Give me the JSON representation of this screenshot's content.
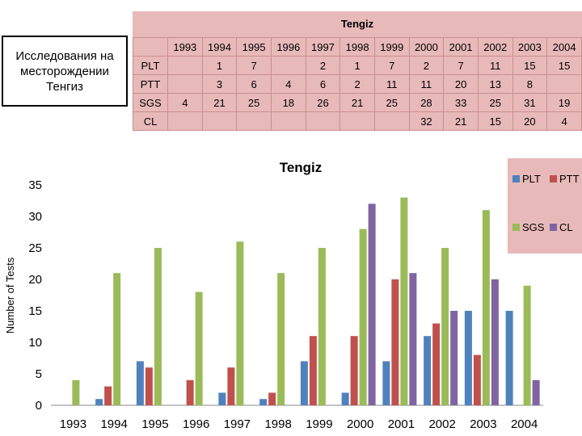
{
  "caption": {
    "lines": [
      "Исследования на",
      "месторождении",
      "Тенгиз"
    ]
  },
  "table": {
    "title": "Tengiz",
    "years": [
      "1993",
      "1994",
      "1995",
      "1996",
      "1997",
      "1998",
      "1999",
      "2000",
      "2001",
      "2002",
      "2003",
      "2004"
    ],
    "rows": [
      {
        "label": "PLT",
        "cells": [
          "",
          "1",
          "7",
          "",
          "2",
          "1",
          "7",
          "2",
          "7",
          "11",
          "15",
          "15"
        ]
      },
      {
        "label": "PTT",
        "cells": [
          "",
          "3",
          "6",
          "4",
          "6",
          "2",
          "11",
          "11",
          "20",
          "13",
          "8",
          ""
        ]
      },
      {
        "label": "SGS",
        "cells": [
          "4",
          "21",
          "25",
          "18",
          "26",
          "21",
          "25",
          "28",
          "33",
          "25",
          "31",
          "19"
        ]
      },
      {
        "label": "CL",
        "cells": [
          "",
          "",
          "",
          "",
          "",
          "",
          "",
          "32",
          "21",
          "15",
          "20",
          "4"
        ]
      }
    ]
  },
  "chart_data": {
    "type": "bar",
    "title": "Tengiz",
    "xlabel": "",
    "ylabel": "Number of Tests",
    "ylim": [
      0,
      35
    ],
    "yticks": [
      0,
      5,
      10,
      15,
      20,
      25,
      30,
      35
    ],
    "grid": false,
    "legend_position": "top-right",
    "categories": [
      "1993",
      "1994",
      "1995",
      "1996",
      "1997",
      "1998",
      "1999",
      "2000",
      "2001",
      "2002",
      "2003",
      "2004"
    ],
    "series": [
      {
        "name": "PLT",
        "color": "#4f81bd",
        "values": [
          null,
          1,
          7,
          null,
          2,
          1,
          7,
          2,
          7,
          11,
          15,
          15
        ]
      },
      {
        "name": "PTT",
        "color": "#c0504d",
        "values": [
          null,
          3,
          6,
          4,
          6,
          2,
          11,
          11,
          20,
          13,
          8,
          null
        ]
      },
      {
        "name": "SGS",
        "color": "#9bbb59",
        "values": [
          4,
          21,
          25,
          18,
          26,
          21,
          25,
          28,
          33,
          25,
          31,
          19
        ]
      },
      {
        "name": "CL",
        "color": "#8064a2",
        "values": [
          null,
          null,
          null,
          null,
          null,
          null,
          null,
          32,
          21,
          15,
          20,
          4
        ]
      }
    ]
  }
}
